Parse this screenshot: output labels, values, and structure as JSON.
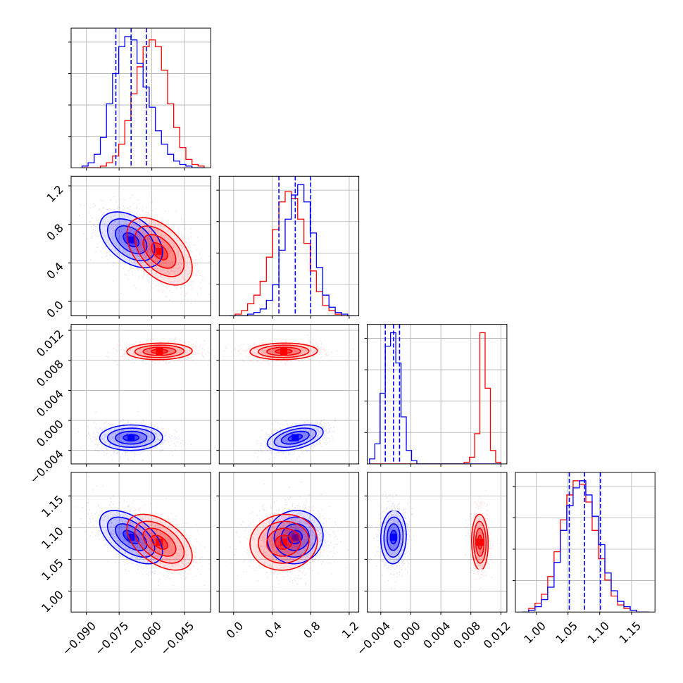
{
  "chart_data": {
    "type": "corner",
    "colors": {
      "series_a": "#0000ff",
      "series_b": "#ff0000",
      "grid": "#b0b0b0"
    },
    "grid": true,
    "parameters": [
      {
        "range": [
          -0.097,
          -0.033
        ],
        "ticks": [
          -0.09,
          -0.075,
          -0.06,
          -0.045
        ],
        "tick_labels": [
          "−0.090",
          "−0.075",
          "−0.060",
          "−0.045"
        ]
      },
      {
        "range": [
          -0.15,
          1.3
        ],
        "ticks": [
          0.0,
          0.4,
          0.8,
          1.2
        ],
        "tick_labels": [
          "0.0",
          "0.4",
          "0.8",
          "1.2"
        ]
      },
      {
        "range": [
          -0.0058,
          0.0128
        ],
        "ticks": [
          -0.004,
          0.0,
          0.004,
          0.008,
          0.012
        ],
        "tick_labels": [
          "−0.004",
          "0.000",
          "0.004",
          "0.008",
          "0.012"
        ]
      },
      {
        "range": [
          0.967,
          1.187
        ],
        "ticks": [
          1.0,
          1.05,
          1.1,
          1.15
        ],
        "tick_labels": [
          "1.00",
          "1.05",
          "1.10",
          "1.15"
        ]
      }
    ],
    "series": [
      {
        "color": "#0000ff",
        "mean": [
          -0.0695,
          0.64,
          -0.0023,
          1.085
        ],
        "std": [
          0.0072,
          0.145,
          0.00085,
          0.021
        ],
        "quantile_lines": [
          [
            -0.0765,
            -0.0695,
            -0.0625
          ],
          [
            0.47,
            0.64,
            0.8
          ],
          [
            -0.0034,
            -0.0023,
            -0.0015
          ],
          [
            1.052,
            1.076,
            1.101
          ]
        ]
      },
      {
        "color": "#ff0000",
        "mean": [
          -0.0565,
          0.52,
          0.0092,
          1.077
        ],
        "std": [
          0.0075,
          0.175,
          0.00055,
          0.022
        ]
      }
    ],
    "histograms": [
      {
        "bin_edges": [
          -0.092,
          -0.0892,
          -0.0864,
          -0.0836,
          -0.0808,
          -0.078,
          -0.0752,
          -0.0724,
          -0.0696,
          -0.0668,
          -0.064,
          -0.0612,
          -0.0584,
          -0.0556,
          -0.0528,
          -0.05,
          -0.0472,
          -0.0444,
          -0.0416,
          -0.0388,
          -0.036
        ],
        "series_a": [
          1,
          3,
          8,
          18,
          38,
          56,
          72,
          78,
          76,
          62,
          48,
          36,
          22,
          14,
          8,
          4,
          2,
          1,
          0,
          0
        ],
        "series_b": [
          0,
          0,
          0,
          1,
          3,
          7,
          14,
          28,
          44,
          60,
          72,
          76,
          72,
          58,
          38,
          24,
          12,
          5,
          2,
          1
        ]
      },
      {
        "bin_edges": [
          -0.05,
          0.015,
          0.08,
          0.145,
          0.21,
          0.275,
          0.34,
          0.405,
          0.47,
          0.535,
          0.6,
          0.665,
          0.73,
          0.795,
          0.86,
          0.925,
          0.99,
          1.055,
          1.12,
          1.185,
          1.25
        ],
        "series_a": [
          0,
          0,
          0,
          1,
          2,
          4,
          9,
          18,
          38,
          56,
          70,
          76,
          66,
          48,
          28,
          12,
          5,
          2,
          1,
          0
        ],
        "series_b": [
          0,
          1,
          3,
          7,
          12,
          20,
          34,
          50,
          66,
          72,
          68,
          56,
          42,
          26,
          14,
          6,
          3,
          1,
          0,
          0
        ]
      },
      {
        "bin_edges": [
          -0.0055,
          -0.0048,
          -0.0041,
          -0.0034,
          -0.0027,
          -0.002,
          -0.0013,
          -0.0006,
          0.0001,
          0.0008,
          0.0015,
          0.0022,
          0.0029,
          0.0036,
          0.0043,
          0.005,
          0.0057,
          0.0064,
          0.0071,
          0.0078,
          0.0085,
          0.0092,
          0.0099,
          0.0106,
          0.0113,
          0.012
        ],
        "series_a": [
          3,
          12,
          42,
          70,
          78,
          60,
          28,
          8,
          2,
          0,
          0,
          0,
          0,
          0,
          0,
          0,
          0,
          0,
          0,
          0,
          0,
          0,
          0,
          0,
          0
        ],
        "series_b": [
          0,
          0,
          0,
          0,
          0,
          0,
          0,
          0,
          0,
          0,
          0,
          0,
          0,
          0,
          0,
          0,
          0,
          0,
          1,
          4,
          18,
          78,
          45,
          8,
          1
        ]
      },
      {
        "bin_edges": [
          0.978,
          0.988,
          0.998,
          1.008,
          1.018,
          1.028,
          1.038,
          1.048,
          1.058,
          1.068,
          1.078,
          1.088,
          1.098,
          1.108,
          1.118,
          1.128,
          1.138,
          1.148,
          1.158,
          1.168,
          1.178
        ],
        "series_a": [
          0,
          1,
          3,
          7,
          14,
          28,
          46,
          60,
          70,
          74,
          66,
          54,
          38,
          22,
          12,
          6,
          3,
          1,
          0,
          0
        ],
        "series_b": [
          0,
          2,
          5,
          10,
          20,
          34,
          52,
          66,
          74,
          72,
          62,
          46,
          30,
          18,
          9,
          4,
          2,
          1,
          0,
          0
        ]
      }
    ]
  }
}
